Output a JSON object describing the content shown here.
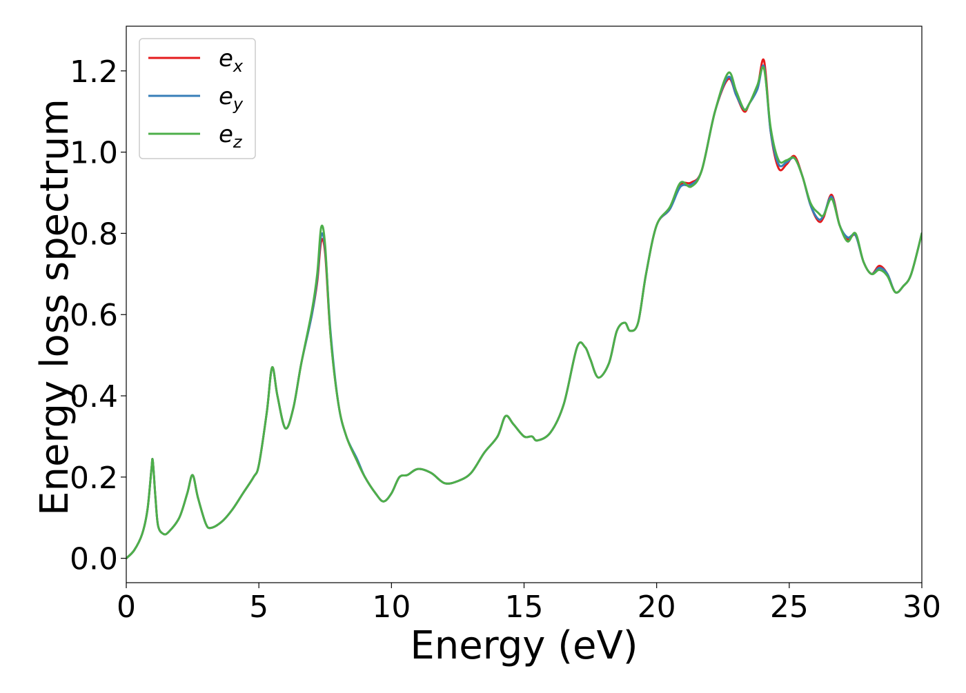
{
  "chart_data": {
    "type": "line",
    "title": "",
    "xlabel": "Energy (eV)",
    "ylabel": "Energy loss spectrum",
    "xlim": [
      0,
      30
    ],
    "ylim": [
      -0.06,
      1.31
    ],
    "xticks": [
      0,
      5,
      10,
      15,
      20,
      25,
      30
    ],
    "xtick_labels": [
      "0",
      "5",
      "10",
      "15",
      "20",
      "25",
      "30"
    ],
    "yticks": [
      0.0,
      0.2,
      0.4,
      0.6,
      0.8,
      1.0,
      1.2
    ],
    "ytick_labels": [
      "0.0",
      "0.2",
      "0.4",
      "0.6",
      "0.8",
      "1.0",
      "1.2"
    ],
    "grid": false,
    "legend": {
      "location": "top-left",
      "frame": true
    },
    "series": [
      {
        "name": "e",
        "subscript": "x",
        "color": "#e41a1c",
        "x": [
          0,
          0.3,
          0.6,
          0.8,
          0.95,
          1.0,
          1.1,
          1.2,
          1.4,
          1.6,
          2.0,
          2.3,
          2.5,
          2.7,
          3.0,
          3.2,
          3.6,
          4.0,
          4.4,
          4.8,
          5.0,
          5.3,
          5.5,
          5.7,
          6.0,
          6.3,
          6.6,
          7.0,
          7.2,
          7.35,
          7.5,
          7.7,
          8.0,
          8.3,
          8.7,
          9.0,
          9.4,
          9.7,
          10.0,
          10.3,
          10.6,
          11.0,
          11.5,
          12.0,
          12.5,
          13.0,
          13.5,
          14.0,
          14.3,
          14.6,
          15.0,
          15.3,
          15.5,
          16.0,
          16.5,
          17.0,
          17.3,
          17.5,
          17.8,
          18.2,
          18.5,
          18.8,
          19.0,
          19.3,
          19.6,
          20.0,
          20.5,
          20.9,
          21.3,
          21.7,
          22.2,
          22.7,
          23.0,
          23.3,
          23.5,
          23.8,
          24.05,
          24.3,
          24.6,
          24.9,
          25.2,
          25.5,
          25.8,
          26.1,
          26.3,
          26.6,
          26.9,
          27.2,
          27.5,
          27.8,
          28.1,
          28.4,
          28.7,
          29.0,
          29.3,
          29.6,
          30.0
        ],
        "values": [
          0.0,
          0.02,
          0.06,
          0.12,
          0.22,
          0.24,
          0.15,
          0.08,
          0.06,
          0.065,
          0.1,
          0.16,
          0.205,
          0.15,
          0.085,
          0.075,
          0.09,
          0.12,
          0.16,
          0.2,
          0.23,
          0.36,
          0.47,
          0.4,
          0.32,
          0.37,
          0.48,
          0.6,
          0.68,
          0.78,
          0.75,
          0.55,
          0.38,
          0.3,
          0.24,
          0.2,
          0.16,
          0.14,
          0.16,
          0.2,
          0.205,
          0.22,
          0.21,
          0.185,
          0.19,
          0.21,
          0.26,
          0.3,
          0.35,
          0.33,
          0.3,
          0.3,
          0.29,
          0.31,
          0.38,
          0.52,
          0.52,
          0.49,
          0.445,
          0.48,
          0.56,
          0.58,
          0.56,
          0.58,
          0.7,
          0.82,
          0.86,
          0.92,
          0.925,
          0.955,
          1.1,
          1.18,
          1.14,
          1.1,
          1.12,
          1.16,
          1.225,
          1.05,
          0.96,
          0.97,
          0.99,
          0.94,
          0.87,
          0.83,
          0.84,
          0.895,
          0.82,
          0.785,
          0.795,
          0.73,
          0.7,
          0.72,
          0.7,
          0.655,
          0.67,
          0.7,
          0.8
        ]
      },
      {
        "name": "e",
        "subscript": "y",
        "color": "#377eb8",
        "x": [
          0,
          0.3,
          0.6,
          0.8,
          0.95,
          1.0,
          1.1,
          1.2,
          1.4,
          1.6,
          2.0,
          2.3,
          2.5,
          2.7,
          3.0,
          3.2,
          3.6,
          4.0,
          4.4,
          4.8,
          5.0,
          5.3,
          5.5,
          5.7,
          6.0,
          6.3,
          6.6,
          7.0,
          7.2,
          7.35,
          7.5,
          7.7,
          8.0,
          8.3,
          8.7,
          9.0,
          9.4,
          9.7,
          10.0,
          10.3,
          10.6,
          11.0,
          11.5,
          12.0,
          12.5,
          13.0,
          13.5,
          14.0,
          14.3,
          14.6,
          15.0,
          15.3,
          15.5,
          16.0,
          16.5,
          17.0,
          17.3,
          17.5,
          17.8,
          18.2,
          18.5,
          18.8,
          19.0,
          19.3,
          19.6,
          20.0,
          20.5,
          20.9,
          21.3,
          21.7,
          22.2,
          22.7,
          23.0,
          23.3,
          23.5,
          23.8,
          24.05,
          24.3,
          24.6,
          24.9,
          25.2,
          25.5,
          25.8,
          26.1,
          26.3,
          26.6,
          26.9,
          27.2,
          27.5,
          27.8,
          28.1,
          28.4,
          28.7,
          29.0,
          29.3,
          29.6,
          30.0
        ],
        "values": [
          0.0,
          0.02,
          0.06,
          0.12,
          0.22,
          0.24,
          0.15,
          0.08,
          0.06,
          0.065,
          0.1,
          0.16,
          0.205,
          0.15,
          0.085,
          0.075,
          0.09,
          0.12,
          0.16,
          0.2,
          0.23,
          0.36,
          0.47,
          0.4,
          0.32,
          0.37,
          0.48,
          0.6,
          0.69,
          0.795,
          0.76,
          0.56,
          0.38,
          0.3,
          0.245,
          0.2,
          0.16,
          0.14,
          0.16,
          0.2,
          0.205,
          0.22,
          0.21,
          0.185,
          0.19,
          0.21,
          0.26,
          0.3,
          0.35,
          0.33,
          0.3,
          0.3,
          0.29,
          0.31,
          0.38,
          0.52,
          0.52,
          0.49,
          0.445,
          0.48,
          0.56,
          0.58,
          0.56,
          0.58,
          0.7,
          0.82,
          0.86,
          0.915,
          0.92,
          0.955,
          1.1,
          1.185,
          1.14,
          1.105,
          1.12,
          1.155,
          1.21,
          1.05,
          0.97,
          0.975,
          0.985,
          0.94,
          0.87,
          0.835,
          0.845,
          0.89,
          0.82,
          0.79,
          0.795,
          0.73,
          0.7,
          0.715,
          0.7,
          0.655,
          0.67,
          0.7,
          0.8
        ]
      },
      {
        "name": "e",
        "subscript": "z",
        "color": "#4daf4a",
        "x": [
          0,
          0.3,
          0.6,
          0.8,
          0.95,
          1.0,
          1.1,
          1.2,
          1.4,
          1.6,
          2.0,
          2.3,
          2.5,
          2.7,
          3.0,
          3.2,
          3.6,
          4.0,
          4.4,
          4.8,
          5.0,
          5.3,
          5.5,
          5.7,
          6.0,
          6.3,
          6.6,
          7.0,
          7.2,
          7.35,
          7.5,
          7.7,
          8.0,
          8.3,
          8.7,
          9.0,
          9.4,
          9.7,
          10.0,
          10.3,
          10.6,
          11.0,
          11.5,
          12.0,
          12.5,
          13.0,
          13.5,
          14.0,
          14.3,
          14.6,
          15.0,
          15.3,
          15.5,
          16.0,
          16.5,
          17.0,
          17.3,
          17.5,
          17.8,
          18.2,
          18.5,
          18.8,
          19.0,
          19.3,
          19.6,
          20.0,
          20.5,
          20.9,
          21.3,
          21.7,
          22.2,
          22.7,
          23.0,
          23.3,
          23.5,
          23.8,
          24.05,
          24.3,
          24.6,
          24.9,
          25.2,
          25.5,
          25.8,
          26.1,
          26.3,
          26.6,
          26.9,
          27.2,
          27.5,
          27.8,
          28.1,
          28.4,
          28.7,
          29.0,
          29.3,
          29.6,
          30.0
        ],
        "values": [
          0.0,
          0.02,
          0.06,
          0.12,
          0.22,
          0.24,
          0.15,
          0.08,
          0.06,
          0.065,
          0.1,
          0.16,
          0.205,
          0.15,
          0.085,
          0.075,
          0.09,
          0.12,
          0.16,
          0.2,
          0.23,
          0.36,
          0.47,
          0.4,
          0.32,
          0.37,
          0.48,
          0.61,
          0.7,
          0.815,
          0.77,
          0.55,
          0.38,
          0.3,
          0.24,
          0.2,
          0.16,
          0.14,
          0.16,
          0.2,
          0.205,
          0.22,
          0.21,
          0.185,
          0.19,
          0.21,
          0.26,
          0.3,
          0.35,
          0.33,
          0.3,
          0.3,
          0.29,
          0.31,
          0.38,
          0.52,
          0.52,
          0.49,
          0.445,
          0.48,
          0.56,
          0.58,
          0.56,
          0.58,
          0.7,
          0.82,
          0.865,
          0.925,
          0.915,
          0.955,
          1.1,
          1.195,
          1.15,
          1.105,
          1.12,
          1.165,
          1.205,
          1.06,
          0.98,
          0.98,
          0.985,
          0.94,
          0.875,
          0.85,
          0.845,
          0.885,
          0.82,
          0.78,
          0.8,
          0.73,
          0.7,
          0.71,
          0.695,
          0.655,
          0.67,
          0.7,
          0.8
        ]
      }
    ]
  }
}
